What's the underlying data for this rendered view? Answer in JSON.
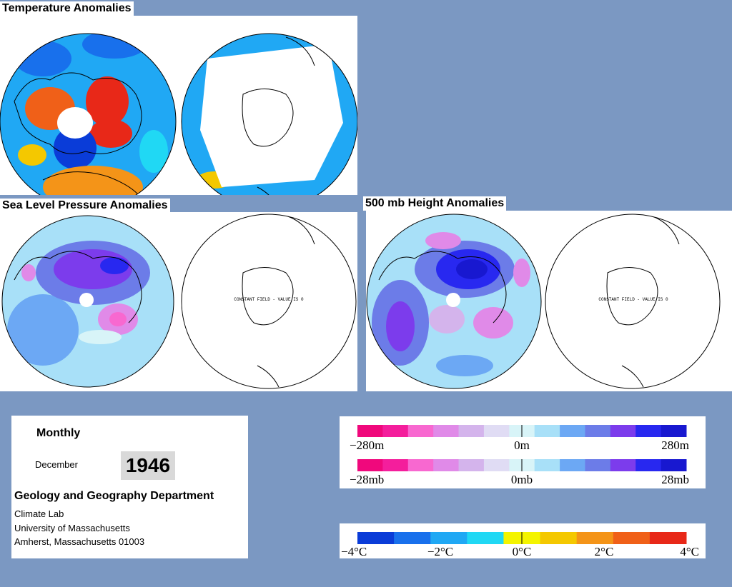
{
  "titles": {
    "temperature": "Temperature Anomalies",
    "slp": "Sea Level Pressure Anomalies",
    "height500": "500 mb Height Anomalies"
  },
  "constant_field_label": "CONSTANT FIELD - VALUE IS 0",
  "info": {
    "period": "Monthly",
    "month": "December",
    "year": "1946",
    "department": "Geology and Geography Department",
    "lines": [
      "Climate Lab",
      "University of Massachusetts",
      "Amherst, Massachusetts 01003"
    ]
  },
  "legend_height": {
    "labels": [
      "−280m",
      "0m",
      "280m"
    ],
    "colors": [
      "#f0087c",
      "#f41e9c",
      "#f868d0",
      "#e08ae8",
      "#d4b4ec",
      "#e0dcf4",
      "#d8f4f8",
      "#a8e0f8",
      "#6ca8f4",
      "#6c7ce8",
      "#7c3cec",
      "#2828f0",
      "#1818d0"
    ]
  },
  "legend_pressure": {
    "labels": [
      "−28mb",
      "0mb",
      "28mb"
    ],
    "colors": [
      "#f0087c",
      "#f41e9c",
      "#f868d0",
      "#e08ae8",
      "#d4b4ec",
      "#e0dcf4",
      "#d8f4f8",
      "#a8e0f8",
      "#6ca8f4",
      "#6c7ce8",
      "#7c3cec",
      "#2828f0",
      "#1818d0"
    ]
  },
  "legend_temperature": {
    "labels": [
      "−4°C",
      "−2°C",
      "0°C",
      "2°C",
      "4°C"
    ],
    "colors": [
      "#0a3cd8",
      "#1870ec",
      "#20a8f4",
      "#20d8f4",
      "#f4f400",
      "#f4c800",
      "#f49418",
      "#f06018",
      "#e82818"
    ]
  }
}
